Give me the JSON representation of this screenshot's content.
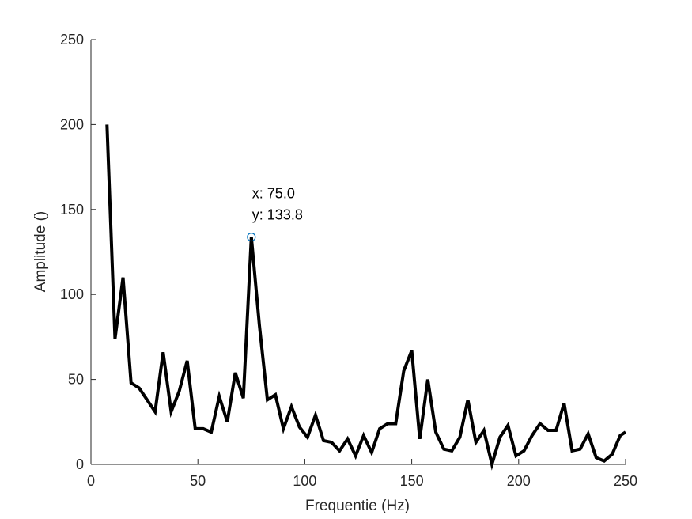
{
  "chart_data": {
    "type": "line",
    "xlabel": "Frequentie (Hz)",
    "ylabel": "Amplitude ()",
    "xlim": [
      0,
      250
    ],
    "ylim": [
      0,
      250
    ],
    "xticks": [
      "0",
      "50",
      "100",
      "150",
      "200",
      "250"
    ],
    "yticks": [
      "0",
      "50",
      "100",
      "150",
      "200",
      "250"
    ],
    "grid": false,
    "line_color": "#000000",
    "marker_color": "#0072BD",
    "series": [
      {
        "x": [
          7.5,
          11.25,
          15.0,
          18.75,
          22.5,
          26.25,
          30.0,
          33.75,
          37.5,
          41.25,
          45.0,
          48.75,
          52.5,
          56.25,
          60.0,
          63.75,
          67.5,
          71.25,
          75.0,
          78.75,
          82.5,
          86.25,
          90.0,
          93.75,
          97.5,
          101.25,
          105.0,
          108.75,
          112.5,
          116.25,
          120.0,
          123.75,
          127.5,
          131.25,
          135.0,
          138.75,
          142.5,
          146.25,
          150.0,
          153.75,
          157.5,
          161.25,
          165.0,
          168.75,
          172.5,
          176.25,
          180.0,
          183.75,
          187.5,
          191.25,
          195.0,
          198.75,
          202.5,
          206.25,
          210.0,
          213.75,
          217.5,
          221.25,
          225.0,
          228.75,
          232.5,
          236.25,
          240.0,
          243.75,
          247.5,
          250.0
        ],
        "y": [
          200,
          74,
          110,
          48,
          45,
          38,
          31,
          66,
          31,
          43,
          61,
          21,
          21,
          19,
          40,
          25,
          54,
          39,
          133.8,
          82,
          38,
          41,
          21,
          34,
          22,
          16,
          29,
          14,
          13,
          8,
          15,
          5,
          17,
          7,
          21,
          24,
          24,
          55,
          67,
          15,
          50,
          19,
          9,
          8,
          16,
          38,
          13,
          20,
          0,
          16,
          23,
          5,
          8,
          17,
          24,
          20,
          20,
          36,
          8,
          9,
          18,
          4,
          2,
          6,
          17,
          19
        ]
      }
    ],
    "datatip": {
      "x": 75.0,
      "y": 133.8,
      "x_text": "x: 75.0",
      "y_text": "y: 133.8"
    }
  }
}
